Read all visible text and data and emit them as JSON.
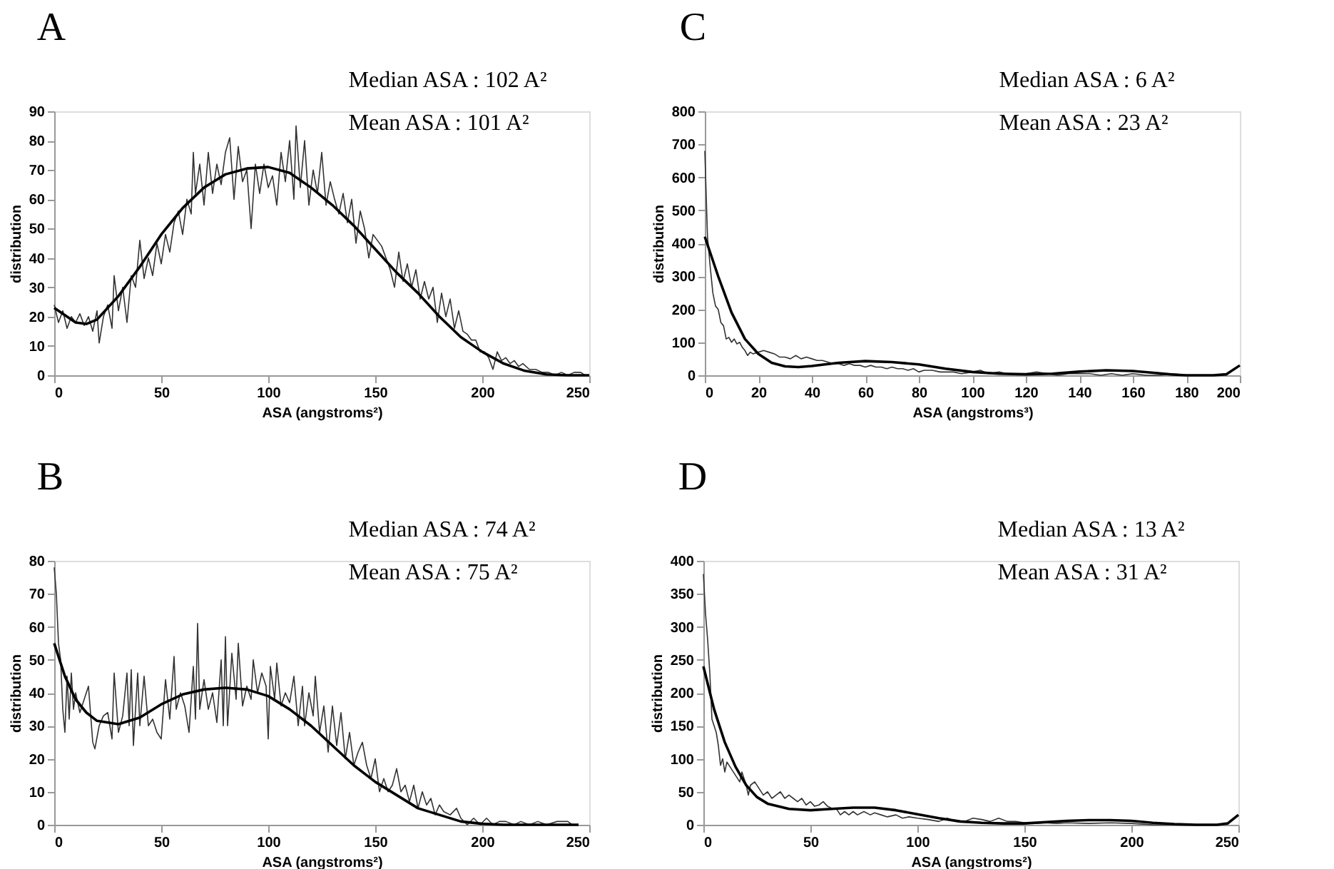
{
  "chart_data": [
    {
      "type": "line",
      "title": "A",
      "annotations": [
        "Median ASA : 102 A²",
        "Mean ASA : 101 A²"
      ],
      "xlabel": "ASA (angstroms²)",
      "ylabel": "distribution",
      "xlim": [
        0,
        250
      ],
      "xticks": [
        0,
        50,
        100,
        150,
        200,
        250
      ],
      "ylim": [
        0,
        90
      ],
      "yticks": [
        0,
        10,
        20,
        30,
        40,
        50,
        60,
        70,
        80,
        90
      ],
      "grid": false,
      "legend": false,
      "line_style": "solid",
      "marker": "none",
      "series": [
        {
          "color": "#333333",
          "x": [
            0,
            2,
            4,
            6,
            8,
            10,
            12,
            14,
            16,
            18,
            20,
            21,
            23,
            25,
            27,
            28,
            30,
            32,
            34,
            36,
            38,
            40,
            42,
            44,
            46,
            48,
            50,
            52,
            54,
            56,
            58,
            60,
            62,
            64,
            65,
            66,
            68,
            70,
            72,
            74,
            76,
            78,
            80,
            82,
            84,
            86,
            88,
            90,
            92,
            94,
            96,
            98,
            100,
            102,
            104,
            106,
            108,
            110,
            112,
            113,
            115,
            117,
            119,
            121,
            123,
            125,
            127,
            129,
            131,
            133,
            135,
            137,
            139,
            141,
            143,
            145,
            147,
            149,
            151,
            153,
            155,
            157,
            159,
            161,
            163,
            165,
            167,
            169,
            171,
            173,
            175,
            177,
            179,
            181,
            183,
            185,
            187,
            189,
            191,
            193,
            195,
            197,
            199,
            201,
            203,
            205,
            207,
            209,
            211,
            213,
            215,
            217,
            219,
            222,
            225,
            228,
            231,
            234,
            237,
            240,
            243,
            246,
            248,
            250
          ],
          "values": [
            24,
            18,
            22,
            16,
            20,
            18,
            21,
            17,
            20,
            15,
            22,
            11,
            20,
            24,
            16,
            34,
            22,
            30,
            18,
            34,
            30,
            46,
            33,
            40,
            34,
            45,
            38,
            48,
            42,
            52,
            56,
            48,
            60,
            55,
            76,
            62,
            72,
            58,
            76,
            62,
            72,
            65,
            76,
            81,
            60,
            78,
            66,
            70,
            50,
            72,
            62,
            72,
            64,
            68,
            58,
            76,
            66,
            80,
            60,
            85,
            64,
            80,
            58,
            70,
            62,
            76,
            58,
            66,
            60,
            55,
            62,
            52,
            60,
            45,
            56,
            50,
            40,
            48,
            46,
            44,
            40,
            36,
            30,
            42,
            32,
            38,
            30,
            36,
            26,
            32,
            26,
            30,
            18,
            28,
            20,
            26,
            16,
            22,
            15,
            14,
            12,
            12,
            8,
            8,
            6,
            2,
            8,
            5,
            6,
            4,
            5,
            3,
            4,
            2,
            2,
            1,
            1,
            0,
            1,
            0,
            1,
            1,
            0,
            0
          ]
        },
        {
          "color": "#000000",
          "x": [
            0,
            10,
            15,
            20,
            30,
            40,
            50,
            60,
            70,
            80,
            90,
            100,
            110,
            120,
            130,
            140,
            150,
            160,
            170,
            180,
            190,
            200,
            210,
            220,
            230,
            240,
            250
          ],
          "values": [
            23,
            18,
            17.5,
            19,
            27,
            37,
            48,
            57,
            64,
            68.5,
            70.5,
            71,
            69,
            64,
            58,
            51,
            43,
            35,
            28,
            20,
            13,
            8,
            4,
            1.5,
            0.3,
            0,
            0
          ]
        }
      ]
    },
    {
      "type": "line",
      "title": "C",
      "annotations": [
        "Median ASA : 6 A²",
        "Mean ASA : 23 A²"
      ],
      "xlabel": "ASA (angstroms³)",
      "ylabel": "distribution",
      "xlim": [
        0,
        200
      ],
      "xticks": [
        0,
        20,
        40,
        60,
        80,
        100,
        120,
        140,
        160,
        180,
        200
      ],
      "ylim": [
        0,
        800
      ],
      "yticks": [
        0,
        100,
        200,
        300,
        400,
        500,
        600,
        700,
        800
      ],
      "grid": false,
      "legend": false,
      "line_style": "solid",
      "marker": "none",
      "series": [
        {
          "color": "#333333",
          "x": [
            0,
            1,
            2,
            3,
            4,
            5,
            6,
            7,
            8,
            9,
            10,
            11,
            12,
            13,
            14,
            15,
            16,
            17,
            18,
            20,
            22,
            24,
            26,
            28,
            30,
            32,
            34,
            36,
            38,
            40,
            42,
            44,
            46,
            48,
            50,
            52,
            54,
            56,
            58,
            60,
            62,
            64,
            66,
            68,
            70,
            72,
            74,
            76,
            78,
            80,
            82,
            85,
            88,
            90,
            93,
            96,
            100,
            103,
            106,
            110,
            113,
            116,
            120,
            124,
            128,
            132,
            136,
            140,
            144,
            148,
            152,
            156,
            160,
            165,
            170,
            175,
            180
          ],
          "values": [
            680,
            420,
            330,
            250,
            210,
            200,
            160,
            150,
            110,
            115,
            100,
            110,
            95,
            100,
            85,
            75,
            60,
            70,
            65,
            70,
            75,
            70,
            65,
            55,
            55,
            50,
            60,
            50,
            55,
            50,
            45,
            45,
            40,
            35,
            35,
            30,
            35,
            30,
            30,
            25,
            30,
            25,
            25,
            20,
            25,
            20,
            20,
            15,
            20,
            10,
            15,
            15,
            10,
            10,
            10,
            5,
            10,
            15,
            5,
            10,
            5,
            5,
            5,
            10,
            5,
            0,
            5,
            5,
            5,
            0,
            5,
            0,
            5,
            0,
            0,
            5,
            0
          ]
        },
        {
          "color": "#000000",
          "x": [
            0,
            5,
            10,
            15,
            20,
            25,
            30,
            35,
            40,
            50,
            60,
            70,
            80,
            90,
            100,
            110,
            120,
            130,
            140,
            150,
            160,
            170,
            175,
            180,
            190,
            195,
            200
          ],
          "values": [
            420,
            300,
            190,
            110,
            65,
            38,
            27,
            25,
            28,
            38,
            43,
            40,
            33,
            20,
            10,
            5,
            3,
            5,
            11,
            15,
            13,
            6,
            2,
            0,
            0,
            3,
            30
          ]
        }
      ]
    },
    {
      "type": "line",
      "title": "B",
      "annotations": [
        "Median ASA : 74 A²",
        "Mean ASA : 75 A²"
      ],
      "xlabel": "ASA (angstroms²)",
      "ylabel": "distribution",
      "xlim": [
        0,
        250
      ],
      "xticks": [
        0,
        50,
        100,
        150,
        200,
        250
      ],
      "ylim": [
        0,
        80
      ],
      "yticks": [
        0,
        10,
        20,
        30,
        40,
        50,
        60,
        70,
        80
      ],
      "grid": false,
      "legend": false,
      "line_style": "solid",
      "marker": "none",
      "series": [
        {
          "color": "#333333",
          "x": [
            0,
            1,
            2,
            3,
            4,
            5,
            6,
            7,
            8,
            9,
            10,
            12,
            14,
            16,
            18,
            19,
            21,
            23,
            25,
            27,
            28,
            30,
            32,
            34,
            35,
            36,
            37,
            39,
            40,
            42,
            44,
            46,
            48,
            50,
            51,
            52,
            54,
            56,
            57,
            59,
            61,
            63,
            65,
            66,
            67,
            68,
            70,
            72,
            74,
            76,
            78,
            79,
            80,
            81,
            83,
            85,
            86,
            88,
            90,
            92,
            93,
            95,
            97,
            99,
            100,
            101,
            103,
            104,
            106,
            108,
            110,
            112,
            114,
            116,
            117,
            119,
            121,
            122,
            124,
            126,
            128,
            130,
            132,
            134,
            136,
            138,
            140,
            142,
            144,
            146,
            148,
            150,
            152,
            154,
            156,
            158,
            160,
            162,
            164,
            166,
            168,
            170,
            172,
            174,
            176,
            178,
            180,
            182,
            185,
            188,
            190,
            193,
            196,
            199,
            202,
            205,
            208,
            211,
            215,
            218,
            222,
            226,
            230,
            235,
            240,
            242
          ],
          "values": [
            78,
            70,
            55,
            50,
            35,
            28,
            45,
            32,
            46,
            35,
            40,
            34,
            38,
            42,
            25,
            23,
            30,
            33,
            34,
            26,
            46,
            28,
            33,
            46,
            30,
            47,
            24,
            46,
            30,
            45,
            30,
            32,
            28,
            26,
            35,
            44,
            32,
            51,
            35,
            40,
            36,
            28,
            48,
            32,
            61,
            35,
            44,
            35,
            40,
            31,
            50,
            30,
            57,
            30,
            52,
            38,
            55,
            36,
            42,
            38,
            50,
            40,
            46,
            42,
            26,
            48,
            38,
            49,
            36,
            40,
            37,
            45,
            30,
            42,
            30,
            40,
            33,
            45,
            28,
            36,
            22,
            36,
            24,
            34,
            20,
            28,
            18,
            22,
            25,
            18,
            14,
            20,
            10,
            14,
            10,
            12,
            17,
            10,
            12,
            7,
            12,
            5,
            10,
            6,
            8,
            3,
            6,
            4,
            3,
            5,
            2,
            0,
            2,
            0,
            2,
            0,
            1,
            1,
            0,
            1,
            0,
            1,
            0,
            1,
            1,
            0
          ]
        },
        {
          "color": "#000000",
          "x": [
            0,
            5,
            10,
            15,
            20,
            30,
            40,
            50,
            60,
            70,
            80,
            90,
            100,
            110,
            120,
            130,
            140,
            150,
            160,
            170,
            180,
            190,
            200,
            210,
            220,
            240,
            245
          ],
          "values": [
            55,
            45,
            38,
            34,
            31.5,
            30.5,
            32.5,
            36.5,
            39.5,
            41,
            41.5,
            41,
            39,
            35,
            30,
            24,
            18,
            13,
            9,
            5,
            3,
            1,
            0.3,
            0,
            0,
            0,
            0
          ]
        }
      ]
    },
    {
      "type": "line",
      "title": "D",
      "annotations": [
        "Median ASA : 13 A²",
        "Mean ASA : 31 A²"
      ],
      "xlabel": "ASA (angstroms²)",
      "ylabel": "distribution",
      "xlim": [
        0,
        250
      ],
      "xticks": [
        0,
        50,
        100,
        150,
        200,
        250
      ],
      "ylim": [
        0,
        400
      ],
      "yticks": [
        0,
        50,
        100,
        150,
        200,
        250,
        300,
        350,
        400
      ],
      "grid": false,
      "legend": false,
      "line_style": "solid",
      "marker": "none",
      "series": [
        {
          "color": "#333333",
          "x": [
            0,
            1,
            2,
            3,
            4,
            5,
            6,
            7,
            8,
            9,
            10,
            11,
            13,
            15,
            17,
            18,
            20,
            21,
            22,
            24,
            26,
            28,
            30,
            32,
            34,
            36,
            38,
            40,
            42,
            44,
            46,
            48,
            50,
            52,
            54,
            56,
            58,
            60,
            62,
            64,
            66,
            68,
            70,
            72,
            75,
            78,
            80,
            83,
            86,
            90,
            93,
            96,
            100,
            105,
            110,
            114,
            118,
            122,
            126,
            130,
            134,
            138,
            142,
            146,
            150,
            155,
            160,
            165,
            170,
            180,
            190,
            200,
            210,
            220,
            230,
            240
          ],
          "values": [
            380,
            320,
            280,
            230,
            160,
            150,
            140,
            120,
            90,
            100,
            80,
            95,
            85,
            75,
            65,
            80,
            60,
            45,
            60,
            65,
            55,
            45,
            50,
            40,
            45,
            50,
            40,
            45,
            40,
            35,
            40,
            30,
            35,
            28,
            30,
            35,
            28,
            25,
            25,
            15,
            20,
            15,
            20,
            15,
            20,
            15,
            18,
            15,
            12,
            15,
            10,
            12,
            10,
            8,
            5,
            10,
            5,
            5,
            10,
            8,
            5,
            10,
            5,
            5,
            3,
            2,
            3,
            2,
            3,
            2,
            3,
            2,
            0,
            0,
            0,
            0
          ]
        },
        {
          "color": "#000000",
          "x": [
            0,
            5,
            10,
            15,
            20,
            25,
            30,
            40,
            50,
            60,
            70,
            80,
            90,
            100,
            110,
            120,
            130,
            140,
            150,
            160,
            170,
            180,
            190,
            200,
            210,
            220,
            230,
            240,
            245,
            250
          ],
          "values": [
            240,
            175,
            125,
            88,
            60,
            42,
            32,
            24,
            22,
            24,
            26,
            26,
            22,
            16,
            10,
            5,
            3,
            2,
            2,
            4,
            6,
            7,
            7,
            6,
            3,
            1,
            0,
            0,
            2,
            15
          ]
        }
      ]
    }
  ]
}
